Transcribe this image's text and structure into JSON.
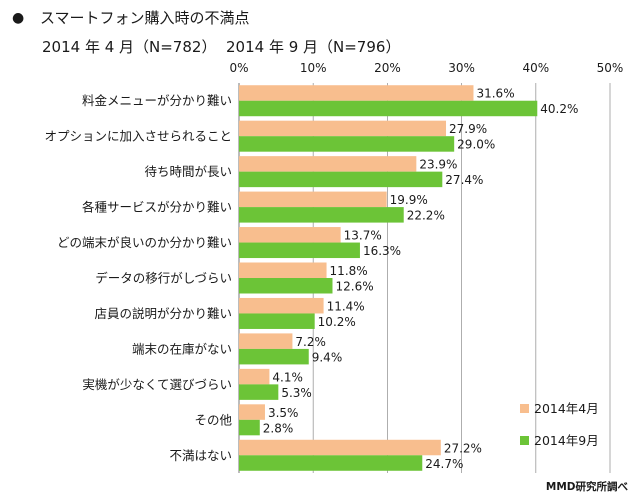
{
  "header": {
    "bullet": "●",
    "title": "スマートフォン購入時の不満点",
    "subtitle_2014_04": "2014 年 4 月（N=782）",
    "subtitle_2014_09": "2014 年 9 月（N=796）"
  },
  "chart_data": {
    "type": "bar",
    "orientation": "horizontal",
    "title": "スマートフォン購入時の不満点",
    "categories": [
      "料金メニューが分かり難い",
      "オプションに加入させられること",
      "待ち時間が長い",
      "各種サービスが分かり難い",
      "どの端末が良いのか分かり難い",
      "データの移行がしづらい",
      "店員の説明が分かり難い",
      "端末の在庫がない",
      "実機が少なくて選びづらい",
      "その他",
      "不満はない"
    ],
    "series": [
      {
        "name": "2014年4月",
        "color": "#F8BE8E",
        "values": [
          31.6,
          27.9,
          23.9,
          19.9,
          13.7,
          11.8,
          11.4,
          7.2,
          4.1,
          3.5,
          27.2
        ],
        "labels": [
          "31.6%",
          "27.9%",
          "23.9%",
          "19.9%",
          "13.7%",
          "11.8%",
          "11.4%",
          "7.2%",
          "4.1%",
          "3.5%",
          "27.2%"
        ]
      },
      {
        "name": "2014年9月",
        "color": "#6CC437",
        "values": [
          40.2,
          29.0,
          27.4,
          22.2,
          16.3,
          12.6,
          10.2,
          9.4,
          5.3,
          2.8,
          24.7
        ],
        "labels": [
          "40.2%",
          "29.0%",
          "27.4%",
          "22.2%",
          "16.3%",
          "12.6%",
          "10.2%",
          "9.4%",
          "5.3%",
          "2.8%",
          "24.7%"
        ]
      }
    ],
    "xlim": [
      0,
      50
    ],
    "ticks": [
      0,
      10,
      20,
      30,
      40,
      50
    ],
    "tick_labels": [
      "0%",
      "10%",
      "20%",
      "30%",
      "40%",
      "50%"
    ],
    "grid": true,
    "legend_position": "bottom-right"
  },
  "credit": "MMD研究所調べ"
}
